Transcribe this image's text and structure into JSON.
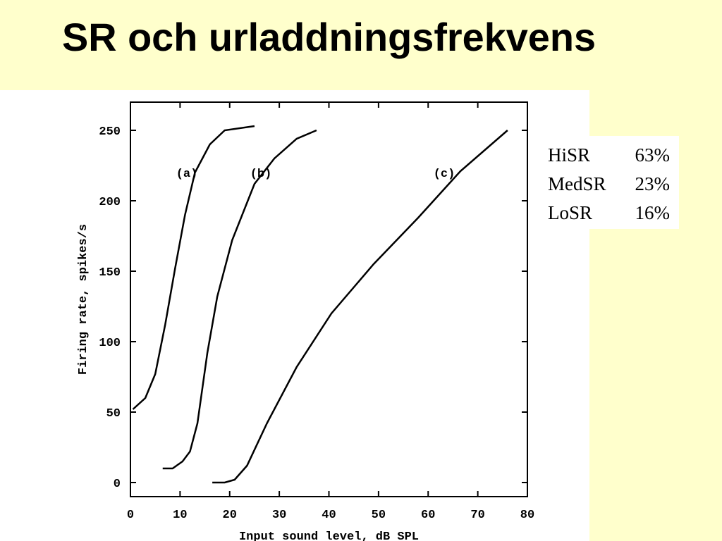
{
  "slide_title": "SR och urladdningsfrekvens",
  "table": {
    "rows": [
      [
        "HiSR",
        "63%"
      ],
      [
        "MedSR",
        "23%"
      ],
      [
        "LoSR",
        "16%"
      ]
    ]
  },
  "chart_data": {
    "type": "line",
    "x_label": "Input sound level, dB SPL",
    "y_label": "Firing rate, spikes/s",
    "xlim": [
      0,
      80
    ],
    "ylim": [
      -10,
      270
    ],
    "xticks": [
      0,
      10,
      20,
      30,
      40,
      50,
      60,
      70,
      80
    ],
    "yticks": [
      0,
      50,
      100,
      150,
      200,
      250
    ],
    "series": [
      {
        "name": "(a)",
        "color": "#000000",
        "x": [
          0.5,
          3,
          5,
          7,
          9,
          11,
          13,
          16,
          19,
          25
        ],
        "values": [
          52,
          60,
          77,
          112,
          152,
          190,
          220,
          240,
          250,
          253
        ]
      },
      {
        "name": "(b)",
        "color": "#000000",
        "x": [
          6.5,
          8.5,
          10.5,
          12,
          13.5,
          15.5,
          17.5,
          20.5,
          25,
          29,
          33.5,
          37.5
        ],
        "values": [
          10,
          10,
          15,
          22,
          42,
          92,
          132,
          172,
          212,
          230,
          244,
          250
        ]
      },
      {
        "name": "(c)",
        "color": "#000000",
        "x": [
          16.5,
          19,
          21,
          23.5,
          27.5,
          33.5,
          40.5,
          49,
          58,
          66.5,
          76
        ],
        "values": [
          0,
          0,
          2,
          12,
          42,
          82,
          120,
          155,
          188,
          221,
          250
        ]
      }
    ]
  }
}
